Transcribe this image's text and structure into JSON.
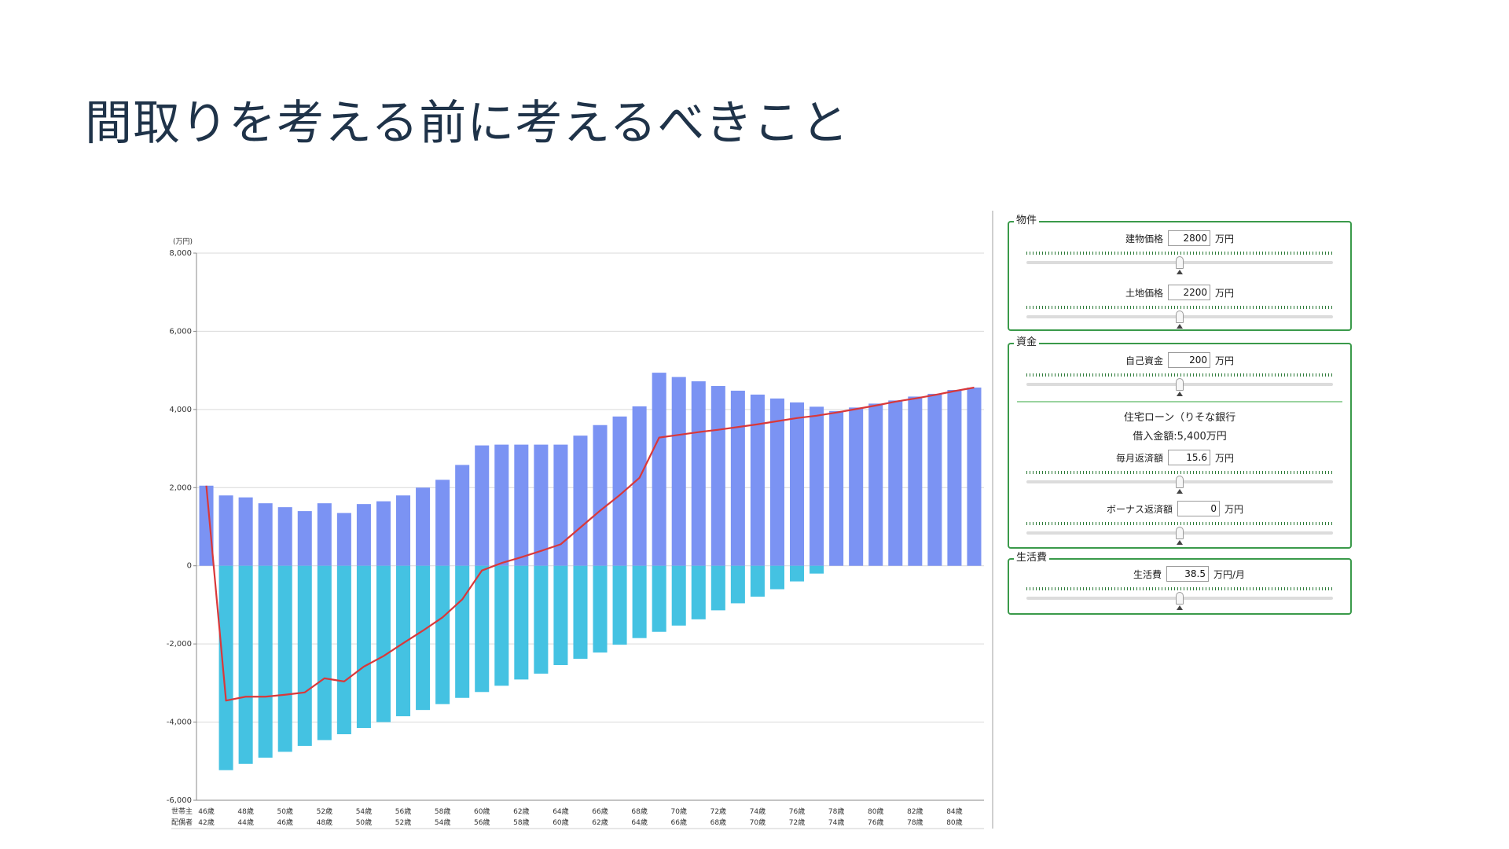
{
  "slide": {
    "title": "間取りを考える前に考えるべきこと"
  },
  "chart_data": {
    "type": "bar+line",
    "unit_label": "(万円)",
    "ylim": [
      -6000,
      8000
    ],
    "y_ticks": [
      8000,
      6000,
      4000,
      2000,
      0,
      -2000,
      -4000,
      -6000
    ],
    "y_tick_labels": [
      "8,000",
      "6,000",
      "4,000",
      "2,000",
      "0",
      "-2,000",
      "-4,000",
      "-6,000"
    ],
    "grid": true,
    "row_labels": [
      "世帯主",
      "配偶者"
    ],
    "head_ages": [
      46,
      47,
      48,
      49,
      50,
      51,
      52,
      53,
      54,
      55,
      56,
      57,
      58,
      59,
      60,
      61,
      62,
      63,
      64,
      65,
      66,
      67,
      68,
      69,
      70,
      71,
      72,
      73,
      74,
      75,
      76,
      77,
      78,
      79,
      80,
      81,
      82,
      83,
      84,
      85
    ],
    "head_age_labels": [
      "46歳",
      "48歳",
      "50歳",
      "52歳",
      "54歳",
      "56歳",
      "58歳",
      "60歳",
      "62歳",
      "64歳",
      "66歳",
      "68歳",
      "70歳",
      "72歳",
      "74歳",
      "76歳",
      "78歳",
      "80歳",
      "82歳",
      "84歳"
    ],
    "spouse_age_labels": [
      "42歳",
      "44歳",
      "46歳",
      "48歳",
      "50歳",
      "52歳",
      "54歳",
      "56歳",
      "58歳",
      "60歳",
      "62歳",
      "64歳",
      "66歳",
      "68歳",
      "70歳",
      "72歳",
      "74歳",
      "76歳",
      "78歳",
      "80歳"
    ],
    "series": [
      {
        "type": "bar",
        "color": "#7b93f3",
        "values": [
          2050,
          1800,
          1750,
          1600,
          1500,
          1400,
          1600,
          1350,
          1580,
          1650,
          1800,
          2000,
          2200,
          2580,
          3080,
          3100,
          3100,
          3100,
          3100,
          3330,
          3600,
          3820,
          4080,
          4940,
          4830,
          4720,
          4600,
          4480,
          4380,
          4280,
          4180,
          4070,
          3960,
          4050,
          4150,
          4230,
          4330,
          4400,
          4500,
          4560
        ]
      },
      {
        "type": "bar",
        "color": "#44c2e2",
        "values": [
          0,
          -5230,
          -5070,
          -4910,
          -4760,
          -4610,
          -4460,
          -4310,
          -4150,
          -4000,
          -3850,
          -3690,
          -3540,
          -3380,
          -3230,
          -3070,
          -2910,
          -2760,
          -2540,
          -2380,
          -2220,
          -2020,
          -1850,
          -1690,
          -1530,
          -1370,
          -1140,
          -960,
          -790,
          -600,
          -400,
          -200,
          0,
          0,
          0,
          0,
          0,
          0,
          0,
          0
        ]
      },
      {
        "type": "line",
        "color": "#d9383a",
        "values": [
          2050,
          -3450,
          -3350,
          -3350,
          -3300,
          -3240,
          -2880,
          -2960,
          -2580,
          -2310,
          -1980,
          -1660,
          -1320,
          -860,
          -120,
          70,
          220,
          380,
          550,
          980,
          1410,
          1810,
          2250,
          3280,
          3350,
          3420,
          3480,
          3550,
          3620,
          3700,
          3780,
          3840,
          3920,
          4010,
          4100,
          4200,
          4280,
          4370,
          4470,
          4560
        ]
      }
    ]
  },
  "panels": {
    "property": {
      "legend": "物件",
      "building": {
        "label": "建物価格",
        "value": "2800",
        "unit": "万円",
        "slider_fraction": 0.5
      },
      "land": {
        "label": "土地価格",
        "value": "2200",
        "unit": "万円",
        "slider_fraction": 0.5
      }
    },
    "funds": {
      "legend": "資金",
      "own_funds": {
        "label": "自己資金",
        "value": "200",
        "unit": "万円",
        "slider_fraction": 0.5
      },
      "loan_title": "住宅ローン（りそな銀行",
      "loan_amount": "借入金額:5,400万円",
      "monthly": {
        "label": "毎月返済額",
        "value": "15.6",
        "unit": "万円",
        "slider_fraction": 0.5
      },
      "bonus": {
        "label": "ボーナス返済額",
        "value": "0",
        "unit": "万円",
        "slider_fraction": 0.5
      }
    },
    "living": {
      "legend": "生活費",
      "cost": {
        "label": "生活費",
        "value": "38.5",
        "unit": "万円/月",
        "slider_fraction": 0.5
      }
    }
  }
}
